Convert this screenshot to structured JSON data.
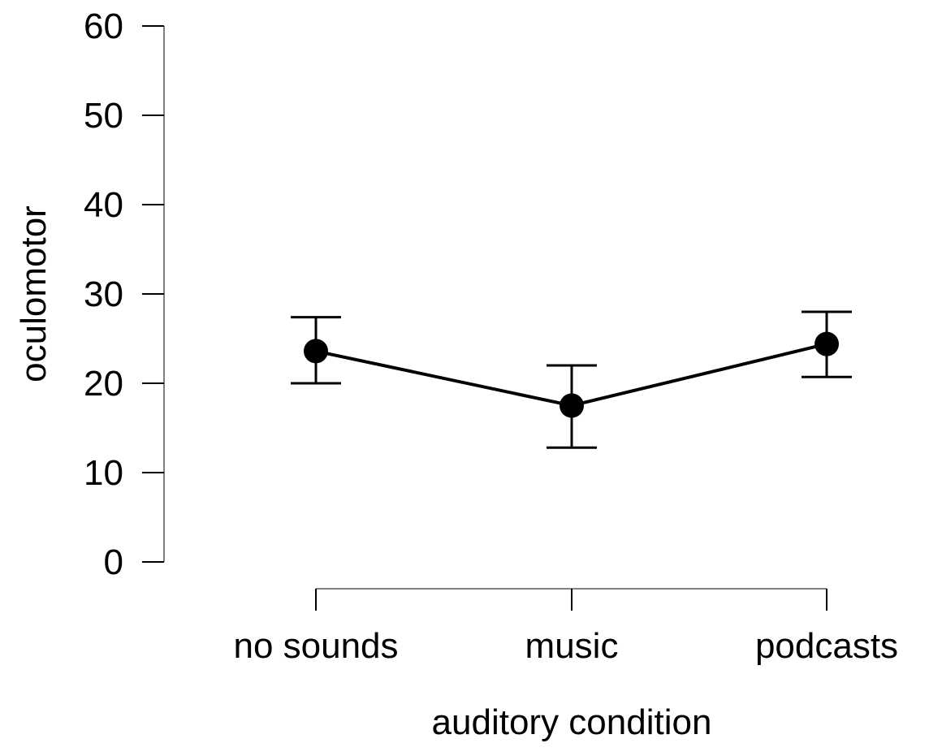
{
  "chart_data": {
    "type": "line",
    "title": "",
    "xlabel": "auditory condition",
    "ylabel": "oculomotor",
    "categories": [
      "no sounds",
      "music",
      "podcasts"
    ],
    "series": [
      {
        "name": "oculomotor",
        "values": [
          23.6,
          17.5,
          24.4
        ],
        "error_upper": [
          27.4,
          22.0,
          28.0
        ],
        "error_lower": [
          20.0,
          12.8,
          20.7
        ]
      }
    ],
    "ylim": [
      0,
      60
    ],
    "yticks": [
      "0",
      "10",
      "20",
      "30",
      "40",
      "50",
      "60"
    ],
    "grid": false,
    "legend": null,
    "colors": {
      "line": "#000000",
      "marker": "#000000",
      "axis": "#808080",
      "ticks": "#000000"
    }
  }
}
